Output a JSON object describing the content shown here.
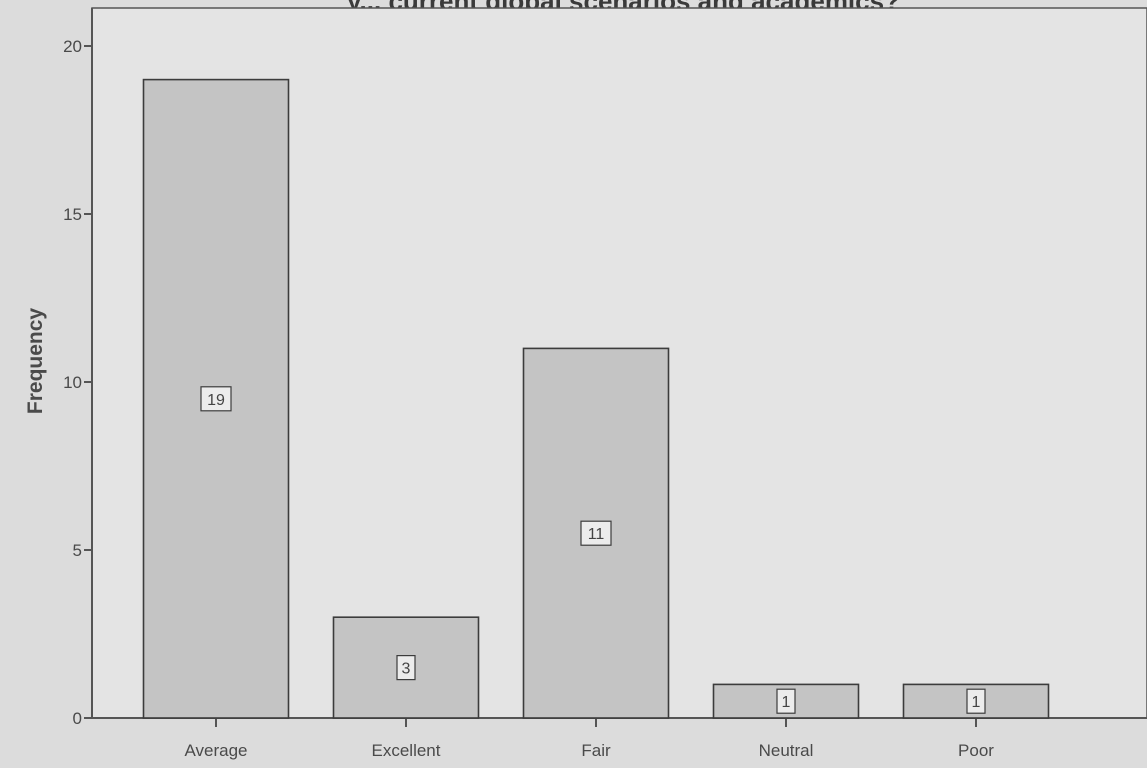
{
  "chart_data": {
    "type": "bar",
    "title": "y... current global scenarios and academics?",
    "xlabel": "",
    "ylabel": "Frequency",
    "categories": [
      "Average",
      "Excellent",
      "Fair",
      "Neutral",
      "Poor"
    ],
    "values": [
      19,
      3,
      11,
      1,
      1
    ],
    "data_labels": [
      "19",
      "3",
      "11",
      "1",
      "1"
    ],
    "ylim": [
      0,
      20
    ],
    "yticks": [
      0,
      5,
      10,
      15,
      20
    ],
    "ytick_labels": [
      "0",
      "5",
      "10",
      "15",
      "20"
    ],
    "grid": false,
    "legend": "none",
    "colors": {
      "background": "#dcdcdc",
      "plot_area": "#e4e4e4",
      "bar_fill": "#c4c4c4",
      "bar_stroke": "#3c3c3c",
      "axis": "#555555",
      "label_box": "#ececec"
    }
  }
}
